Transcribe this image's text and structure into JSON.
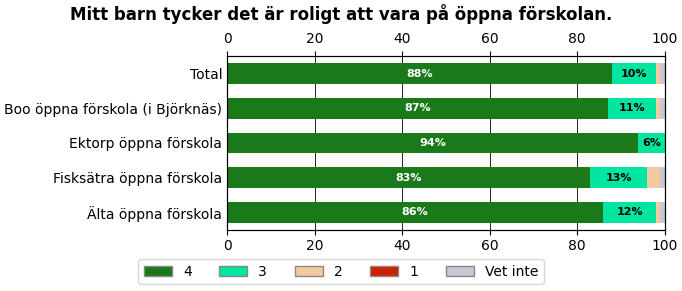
{
  "chart_data": {
    "type": "bar",
    "orientation": "horizontal",
    "stacked": true,
    "title": "Mitt barn tycker det är roligt att vara på öppna förskolan.",
    "categories": [
      "Total",
      "Boo öppna förskola (i Björknäs)",
      "Ektorp öppna förskola",
      "Fisksätra öppna förskola",
      "Älta öppna förskola"
    ],
    "series": [
      {
        "name": "4",
        "color": "#1a7a1a",
        "values": [
          88,
          87,
          94,
          83,
          86
        ],
        "value_labels": [
          "88%",
          "87%",
          "94%",
          "83%",
          "86%"
        ]
      },
      {
        "name": "3",
        "color": "#00e5a0",
        "values": [
          10,
          11,
          6,
          13,
          12
        ],
        "value_labels": [
          "10%",
          "11%",
          "6%",
          "13%",
          "12%"
        ]
      },
      {
        "name": "2",
        "color": "#f5c9a0",
        "values": [
          1,
          1,
          0,
          3,
          1
        ]
      },
      {
        "name": "1",
        "color": "#cc2200",
        "values": [
          0,
          0,
          0,
          0,
          0
        ]
      },
      {
        "name": "Vet inte",
        "color": "#c8c8d4",
        "values": [
          1,
          1,
          0,
          1,
          1
        ]
      }
    ],
    "xlim": [
      0,
      100
    ],
    "xticks": [
      0,
      20,
      40,
      60,
      80,
      100
    ],
    "grid": true,
    "data_labels": true,
    "legend": "lower center"
  }
}
